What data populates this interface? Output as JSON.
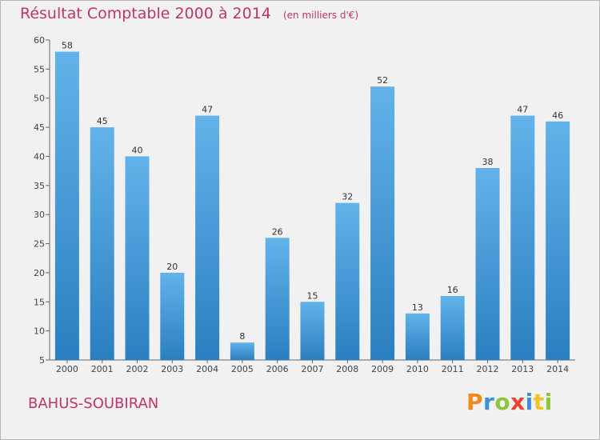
{
  "title": "Résultat Comptable 2000 à 2014",
  "unit": "(en milliers d'€)",
  "commune": "BAHUS-SOUBIRAN",
  "brand": {
    "letters": [
      "P",
      "r",
      "o",
      "x",
      "i",
      "t",
      "i"
    ],
    "colors": [
      "#f08a1c",
      "#3b8fd8",
      "#8cc63f",
      "#e8432e",
      "#3b8fd8",
      "#f4c21f",
      "#8cc63f"
    ]
  },
  "colors": {
    "bar_light": "#63b3ea",
    "bar_dark": "#2a7fc0",
    "text_accent": "#c0346a",
    "axis": "#666666"
  },
  "chart_data": {
    "type": "bar",
    "title": "Résultat Comptable 2000 à 2014",
    "subtitle": "(en milliers d'€)",
    "xlabel": "",
    "ylabel": "",
    "categories": [
      "2000",
      "2001",
      "2002",
      "2003",
      "2004",
      "2005",
      "2006",
      "2007",
      "2008",
      "2009",
      "2010",
      "2011",
      "2012",
      "2013",
      "2014"
    ],
    "values": [
      58,
      45,
      40,
      20,
      47,
      8,
      26,
      15,
      32,
      52,
      13,
      16,
      38,
      47,
      46
    ],
    "ylim": [
      5,
      60
    ],
    "yticks": [
      5,
      10,
      15,
      20,
      25,
      30,
      35,
      40,
      45,
      50,
      55,
      60
    ],
    "grid": false,
    "data_labels": true
  }
}
